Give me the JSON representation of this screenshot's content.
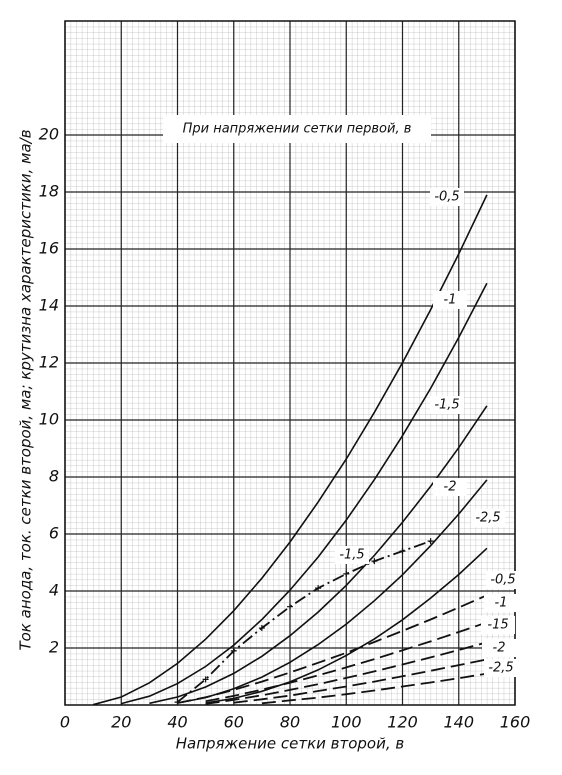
{
  "chart_data": {
    "type": "line",
    "annotation": "При напряжении сетки первой, в",
    "xlabel": "Напряжение сетки второй, в",
    "ylabel": "Ток анода, ток. сетки второй, ма; крутизна характеристики, ма/в",
    "x": [
      0,
      10,
      20,
      30,
      40,
      50,
      60,
      70,
      80,
      90,
      100,
      110,
      120,
      130,
      140,
      150
    ],
    "series": [
      {
        "name": "-0,5",
        "color": "#111111",
        "style": "solid",
        "values": [
          null,
          0.01,
          0.28,
          0.78,
          1.46,
          2.31,
          3.31,
          4.45,
          5.72,
          7.12,
          8.63,
          10.27,
          12.01,
          13.87,
          15.83,
          17.9
        ]
      },
      {
        "name": "-1",
        "color": "#111111",
        "style": "solid",
        "values": [
          null,
          null,
          0.05,
          0.31,
          0.75,
          1.35,
          2.1,
          3.0,
          4.03,
          5.19,
          6.49,
          7.91,
          9.45,
          11.11,
          12.9,
          14.8
        ]
      },
      {
        "name": "-1,5",
        "color": "#111111",
        "style": "solid",
        "values": [
          null,
          null,
          null,
          0.06,
          0.28,
          0.63,
          1.11,
          1.71,
          2.43,
          3.26,
          4.2,
          5.25,
          6.41,
          7.67,
          9.03,
          10.5
        ]
      },
      {
        "name": "-2",
        "color": "#111111",
        "style": "solid",
        "values": [
          null,
          null,
          null,
          null,
          0.07,
          0.26,
          0.57,
          0.98,
          1.5,
          2.12,
          2.84,
          3.66,
          4.57,
          5.59,
          6.7,
          7.9
        ]
      },
      {
        "name": "-2,5",
        "color": "#111111",
        "style": "solid",
        "values": [
          null,
          null,
          null,
          null,
          null,
          0.07,
          0.23,
          0.48,
          0.81,
          1.23,
          1.74,
          2.32,
          2.99,
          3.75,
          4.58,
          5.5
        ]
      },
      {
        "name": "-0,5",
        "color": "#111111",
        "style": "dashed",
        "values": [
          null,
          null,
          null,
          null,
          0.07,
          0.27,
          0.53,
          0.82,
          1.14,
          1.48,
          1.83,
          2.21,
          2.6,
          3.0,
          3.42,
          3.85
        ]
      },
      {
        "name": "-1",
        "color": "#111111",
        "style": "dashed",
        "values": [
          null,
          null,
          null,
          null,
          null,
          0.13,
          0.32,
          0.54,
          0.78,
          1.04,
          1.32,
          1.61,
          1.92,
          2.23,
          2.56,
          2.9
        ]
      },
      {
        "name": "-15",
        "color": "#111111",
        "style": "dashed",
        "values": [
          null,
          null,
          null,
          null,
          null,
          0.04,
          0.18,
          0.34,
          0.53,
          0.73,
          0.95,
          1.18,
          1.42,
          1.67,
          1.93,
          2.2
        ]
      },
      {
        "name": "-2",
        "color": "#111111",
        "style": "dashed",
        "values": [
          null,
          null,
          null,
          null,
          null,
          null,
          0.08,
          0.2,
          0.33,
          0.49,
          0.65,
          0.82,
          1.01,
          1.2,
          1.4,
          1.6
        ]
      },
      {
        "name": "-2,5",
        "color": "#111111",
        "style": "dashed",
        "values": [
          null,
          null,
          null,
          null,
          null,
          null,
          null,
          0.06,
          0.16,
          0.26,
          0.38,
          0.51,
          0.65,
          0.79,
          0.94,
          1.1
        ]
      },
      {
        "name": "-1,5",
        "color": "#111111",
        "style": "dashdot",
        "markers": true,
        "values": [
          null,
          null,
          null,
          null,
          0.1,
          0.9,
          1.9,
          2.7,
          3.45,
          4.1,
          4.6,
          5.05,
          5.4,
          5.75,
          null,
          null
        ]
      }
    ],
    "xlim": [
      0,
      160
    ],
    "ylim": [
      0,
      24
    ],
    "xticks": [
      0,
      20,
      40,
      60,
      80,
      100,
      120,
      140,
      160
    ],
    "yticks": [
      2,
      4,
      6,
      8,
      10,
      12,
      14,
      16,
      18,
      20
    ],
    "grid": true
  }
}
